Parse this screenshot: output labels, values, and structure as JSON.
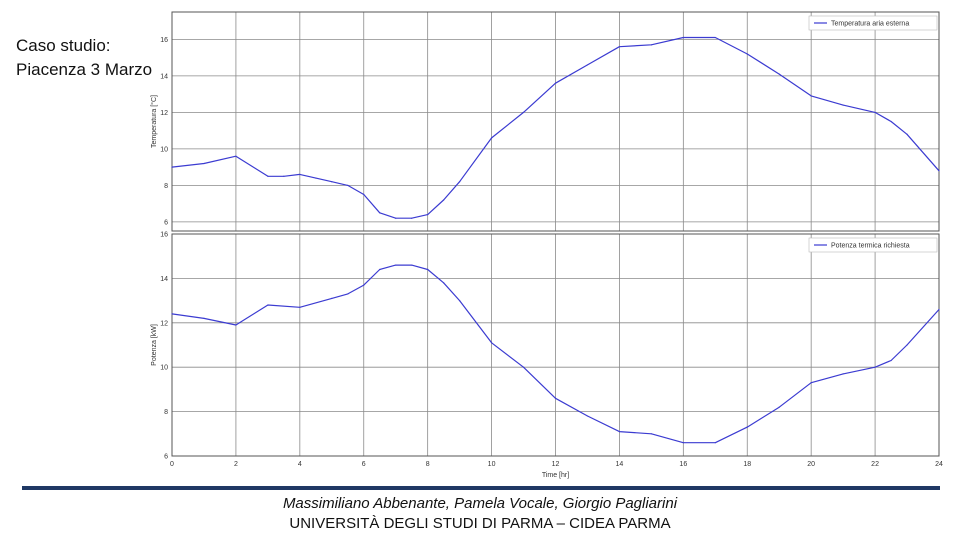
{
  "case_study": {
    "line1": "Caso studio:",
    "line2": "Piacenza 3 Marzo"
  },
  "footer": {
    "authors": "Massimiliano Abbenante, Pamela Vocale, Giorgio Pagliarini",
    "affiliation": "UNIVERSITÀ DEGLI STUDI DI PARMA – CIDEA PARMA"
  },
  "colors": {
    "series": "#3b3bd1",
    "rule": "#1f3864",
    "grid": "#8a8a8a"
  },
  "chart_data": [
    {
      "type": "line",
      "title": "",
      "xlabel": "",
      "ylabel": "Temperatura [°C]",
      "xlim": [
        0,
        24
      ],
      "ylim": [
        5.5,
        17.5
      ],
      "xticks": [
        0,
        2,
        4,
        6,
        8,
        10,
        12,
        14,
        16,
        18,
        20,
        22,
        24
      ],
      "yticks": [
        6,
        8,
        10,
        12,
        14,
        16
      ],
      "show_xtick_labels": false,
      "grid": true,
      "legend": "top-right",
      "series": [
        {
          "name": "Temperatura aria esterna",
          "x": [
            0,
            1,
            2,
            3,
            3.5,
            4,
            4.5,
            5,
            5.5,
            6,
            6.5,
            7,
            7.5,
            8,
            8.5,
            9,
            10,
            11,
            12,
            13,
            14,
            15,
            16,
            17,
            18,
            19,
            20,
            21,
            22,
            22.5,
            23,
            24
          ],
          "y": [
            9.0,
            9.2,
            9.6,
            8.5,
            8.5,
            8.6,
            8.4,
            8.2,
            8.0,
            7.5,
            6.5,
            6.2,
            6.2,
            6.4,
            7.2,
            8.2,
            10.6,
            12.0,
            13.6,
            14.6,
            15.6,
            15.7,
            16.1,
            16.1,
            15.2,
            14.1,
            12.9,
            12.4,
            12.0,
            11.5,
            10.8,
            8.8
          ]
        }
      ]
    },
    {
      "type": "line",
      "title": "",
      "xlabel": "Time [hr]",
      "ylabel": "Potenza [kW]",
      "xlim": [
        0,
        24
      ],
      "ylim": [
        6,
        16
      ],
      "xticks": [
        0,
        2,
        4,
        6,
        8,
        10,
        12,
        14,
        16,
        18,
        20,
        22,
        24
      ],
      "yticks": [
        6,
        8,
        10,
        12,
        14,
        16
      ],
      "show_xtick_labels": true,
      "grid": true,
      "legend": "top-right",
      "series": [
        {
          "name": "Potenza termica richiesta",
          "x": [
            0,
            1,
            2,
            3,
            4,
            5,
            5.5,
            6,
            6.5,
            7,
            7.5,
            8,
            8.5,
            9,
            10,
            11,
            12,
            13,
            14,
            15,
            16,
            17,
            18,
            19,
            20,
            21,
            22,
            22.5,
            23,
            24
          ],
          "y": [
            12.4,
            12.2,
            11.9,
            12.8,
            12.7,
            13.1,
            13.3,
            13.7,
            14.4,
            14.6,
            14.6,
            14.4,
            13.8,
            13.0,
            11.1,
            10.0,
            8.6,
            7.8,
            7.1,
            7.0,
            6.6,
            6.6,
            7.3,
            8.2,
            9.3,
            9.7,
            10.0,
            10.3,
            11.0,
            12.6
          ]
        }
      ]
    }
  ]
}
